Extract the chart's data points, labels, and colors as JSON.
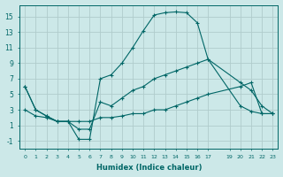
{
  "xlabel": "Humidex (Indice chaleur)",
  "bg_color": "#cce8e8",
  "grid_color": "#b0cccc",
  "line_color": "#006666",
  "xlim": [
    -0.5,
    23.5
  ],
  "ylim": [
    -2,
    16.5
  ],
  "yticks": [
    -1,
    1,
    3,
    5,
    7,
    9,
    11,
    13,
    15
  ],
  "xticks": [
    0,
    1,
    2,
    3,
    4,
    5,
    6,
    7,
    8,
    9,
    10,
    11,
    12,
    13,
    14,
    15,
    16,
    17,
    19,
    20,
    21,
    22,
    23
  ],
  "xtick_labels": [
    "0",
    "1",
    "2",
    "3",
    "4",
    "5",
    "6",
    "7",
    "8",
    "9",
    "10",
    "11",
    "12",
    "13",
    "14",
    "15",
    "16",
    "17",
    "19",
    "20",
    "21",
    "22",
    "23"
  ],
  "series": [
    {
      "x": [
        0,
        1,
        2,
        3,
        4,
        5,
        6,
        7,
        8,
        9,
        10,
        11,
        12,
        13,
        14,
        15,
        16,
        17,
        20,
        21,
        22,
        23
      ],
      "y": [
        6,
        3,
        2.2,
        1.5,
        1.5,
        -0.8,
        -0.8,
        7.0,
        7.5,
        9.0,
        11.0,
        13.2,
        15.2,
        15.5,
        15.6,
        15.5,
        14.2,
        9.5,
        3.5,
        2.8,
        2.5,
        2.5
      ]
    },
    {
      "x": [
        0,
        1,
        2,
        3,
        4,
        5,
        6,
        7,
        8,
        9,
        10,
        11,
        12,
        13,
        14,
        15,
        16,
        17,
        20,
        21,
        22,
        23
      ],
      "y": [
        6,
        3,
        2.2,
        1.5,
        1.5,
        0.5,
        0.5,
        4.0,
        3.5,
        4.5,
        5.5,
        6.0,
        7.0,
        7.5,
        8.0,
        8.5,
        9.0,
        9.5,
        6.5,
        5.5,
        3.5,
        2.5
      ]
    },
    {
      "x": [
        0,
        1,
        2,
        3,
        4,
        5,
        6,
        7,
        8,
        9,
        10,
        11,
        12,
        13,
        14,
        15,
        16,
        17,
        20,
        21,
        22,
        23
      ],
      "y": [
        3,
        2.2,
        2.0,
        1.5,
        1.5,
        1.5,
        1.5,
        2.0,
        2.0,
        2.2,
        2.5,
        2.5,
        3.0,
        3.0,
        3.5,
        4.0,
        4.5,
        5.0,
        6.0,
        6.5,
        2.5,
        2.5
      ]
    }
  ]
}
